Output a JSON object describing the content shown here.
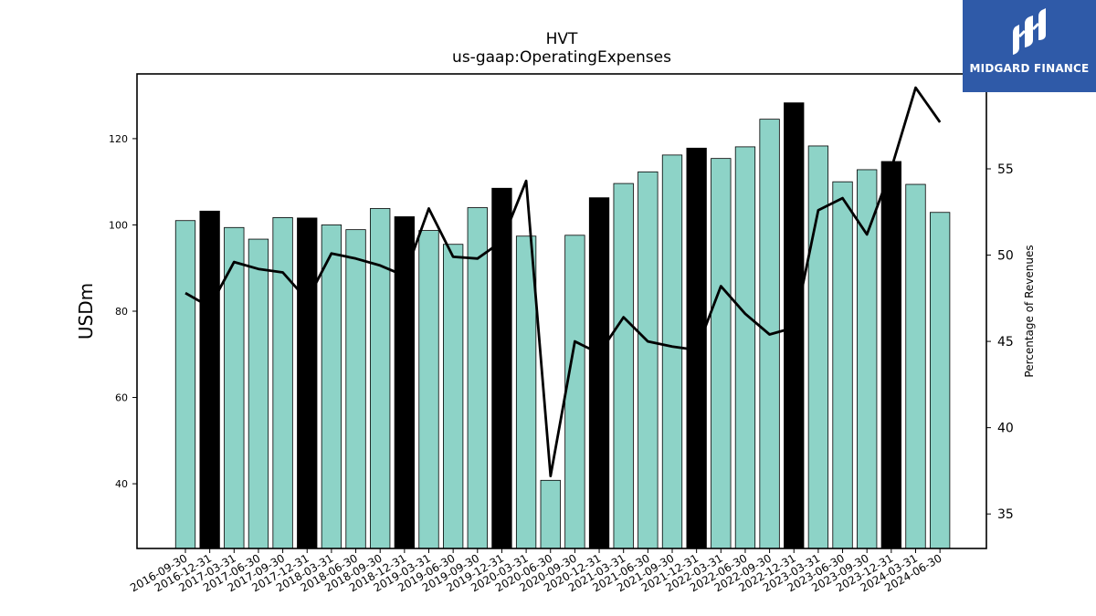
{
  "chart_data": {
    "type": "bar",
    "title": "HVT",
    "subtitle": "us-gaap:OperatingExpenses",
    "ylabel": "USDm",
    "y2label": "Percentage of Revenues",
    "ylim": [
      25,
      135
    ],
    "y2lim": [
      33,
      60.5
    ],
    "yticks": [
      40,
      60,
      80,
      100,
      120
    ],
    "y2ticks": [
      35,
      40,
      45,
      50,
      55
    ],
    "categories": [
      "2016-09-30",
      "2016-12-31",
      "2017-03-31",
      "2017-06-30",
      "2017-09-30",
      "2017-12-31",
      "2018-03-31",
      "2018-06-30",
      "2018-09-30",
      "2018-12-31",
      "2019-03-31",
      "2019-06-30",
      "2019-09-30",
      "2019-12-31",
      "2020-03-31",
      "2020-06-30",
      "2020-09-30",
      "2020-12-31",
      "2021-03-31",
      "2021-06-30",
      "2021-09-30",
      "2021-12-31",
      "2022-03-31",
      "2022-06-30",
      "2022-09-30",
      "2022-12-31",
      "2023-03-31",
      "2023-06-30",
      "2023-09-30",
      "2023-12-31",
      "2024-03-31",
      "2024-06-30"
    ],
    "series": [
      {
        "type": "bar",
        "values": [
          101.0,
          103.2,
          99.4,
          96.7,
          101.7,
          101.6,
          100.0,
          98.9,
          103.8,
          101.9,
          98.7,
          95.5,
          104.0,
          108.5,
          97.4,
          40.8,
          97.6,
          106.3,
          109.6,
          112.3,
          116.2,
          117.8,
          115.4,
          118.1,
          124.5,
          128.3,
          118.3,
          110.0,
          112.8,
          114.7,
          109.4,
          102.9
        ],
        "highlight_indices": [
          1,
          5,
          9,
          13,
          17,
          21,
          25,
          29
        ],
        "color": "#8dd3c7",
        "highlight_color": "#000000"
      },
      {
        "type": "line",
        "axis": "right",
        "values": [
          47.8,
          47.0,
          49.6,
          49.2,
          49.0,
          47.4,
          50.1,
          49.8,
          49.4,
          48.8,
          52.7,
          49.9,
          49.8,
          50.8,
          54.3,
          37.2,
          45.0,
          44.3,
          46.4,
          45.0,
          44.7,
          44.5,
          48.2,
          46.6,
          45.4,
          45.8,
          52.6,
          53.3,
          51.2,
          55.0,
          59.7,
          57.7
        ],
        "color": "#000000"
      }
    ],
    "grid": false,
    "legend": "none"
  },
  "logo": {
    "text": "MIDGARD FINANCE",
    "color": "#2f5aa8"
  }
}
